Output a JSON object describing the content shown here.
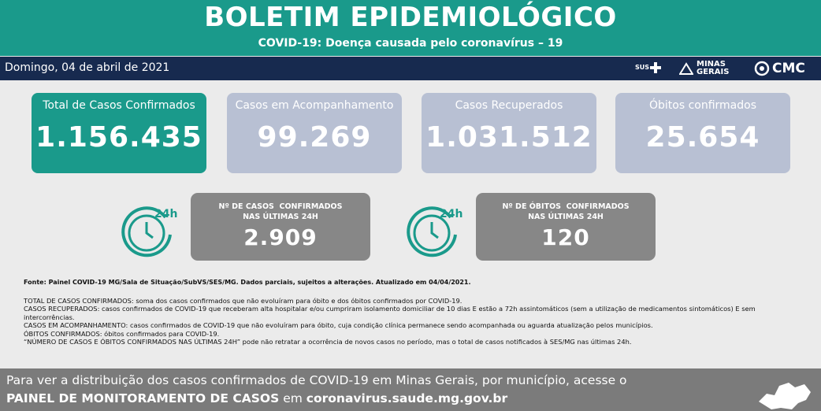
{
  "header": {
    "title": "BOLETIM EPIDEMIOLÓGICO",
    "subtitle": "COVID-19: Doença causada pelo coronavírus – 19"
  },
  "date_bar": {
    "date": "Domingo, 04 de abril de 2021",
    "logos": [
      "SUS",
      "MINAS GERAIS",
      "CMC"
    ]
  },
  "cards": [
    {
      "title": "Total de Casos Confirmados",
      "value": "1.156.435"
    },
    {
      "title": "Casos em Acompanhamento",
      "value": "99.269"
    },
    {
      "title": "Casos Recuperados",
      "value": "1.031.512"
    },
    {
      "title": "Óbitos confirmados",
      "value": "25.654"
    }
  ],
  "daily_cards": [
    {
      "icon_label": "24h",
      "title_lines": [
        "Nº DE CASOS  CONFIRMADOS",
        "NAS ÚLTIMAS 24H"
      ],
      "value": "2.909"
    },
    {
      "icon_label": "24h",
      "title_lines": [
        "Nº DE ÓBITOS  CONFIRMADOS",
        "NAS ÚLTIMAS 24H"
      ],
      "value": "120"
    }
  ],
  "notes": {
    "source": "Fonte: Painel COVID-19 MG/Sala de Situação/SubVS/SES/MG. Dados parciais, sujeitos a alterações. Atualizado em 04/04/2021.",
    "definitions": [
      "TOTAL DE  CASOS CONFIRMADOS: soma dos casos confirmados que não evoluíram para óbito e dos óbitos confirmados por COVID-19.",
      "CASOS RECUPERADOS: casos confirmados de COVID-19 que receberam alta hospitalar e/ou cumpriram isolamento domiciliar de 10 dias E estão a 72h assintomáticos (sem a utilização de medicamentos sintomáticos) E sem intercorrências.",
      "CASOS EM ACOMPANHAMENTO: casos confirmados de COVID-19 que não evoluíram para óbito, cuja condição clínica permanece sendo acompanhada ou aguarda atualização pelos municípios.",
      "ÓBITOS CONFIRMADOS: óbitos confirmados para COVID-19.",
      "“NÚMERO DE CASOS E ÓBITOS CONFIRMADOS NAS ÚLTIMAS 24H” pode não retratar a ocorrência de novos casos no período, mas o total de casos notificados à SES/MG nas últimas 24h."
    ]
  },
  "footer": {
    "line1": "Para ver a distribuição dos casos confirmados de COVID-19 em Minas Gerais, por município, acesse o",
    "link_label": "PAINEL DE MONITORAMENTO DE CASOS",
    "connector": "em",
    "url": "coronavirus.saude.mg.gov.br"
  }
}
